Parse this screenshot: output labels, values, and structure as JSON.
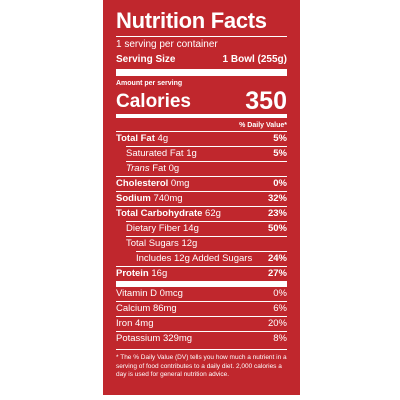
{
  "title": "Nutrition Facts",
  "servings": "1 serving per container",
  "serving_size": {
    "label": "Serving Size",
    "value": "1 Bowl (255g)"
  },
  "amount_per_serving": "Amount per serving",
  "calories": {
    "label": "Calories",
    "value": "350"
  },
  "dv_header": "% Daily Value*",
  "nutrients": [
    {
      "name": "Total Fat",
      "amount": "4g",
      "dv": "5%",
      "sub": [
        {
          "name": "Saturated Fat",
          "amount": "1g",
          "dv": "5%"
        },
        {
          "name_italic": "Trans",
          "name": "Fat",
          "amount": "0g"
        }
      ]
    },
    {
      "name": "Cholesterol",
      "amount": "0mg",
      "dv": "0%"
    },
    {
      "name": "Sodium",
      "amount": "740mg",
      "dv": "32%"
    },
    {
      "name": "Total Carbohydrate",
      "amount": "62g",
      "dv": "23%",
      "sub": [
        {
          "name": "Dietary Fiber",
          "amount": "14g",
          "dv": "50%"
        },
        {
          "name": "Total Sugars",
          "amount": "12g",
          "sub": [
            {
              "name": "Includes 12g Added Sugars",
              "dv": "24%"
            }
          ]
        }
      ]
    },
    {
      "name": "Protein",
      "amount": "16g",
      "dv": "27%"
    }
  ],
  "micronutrients": [
    {
      "name": "Vitamin D",
      "amount": "0mcg",
      "dv": "0%"
    },
    {
      "name": "Calcium",
      "amount": "86mg",
      "dv": "6%"
    },
    {
      "name": "Iron",
      "amount": "4mg",
      "dv": "20%"
    },
    {
      "name": "Potassium",
      "amount": "329mg",
      "dv": "8%"
    }
  ],
  "footnote": "* The % Daily Value (DV) tells you how much a nutrient in a serving of food contributes to a daily diet. 2,000 calories a day is used for general nutrition advice."
}
